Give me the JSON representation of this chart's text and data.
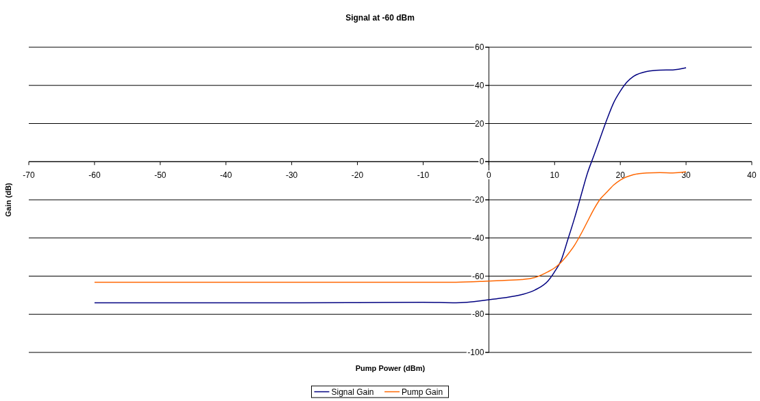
{
  "chart_data": {
    "type": "line",
    "title": "Signal at -60 dBm",
    "xlabel": "Pump Power (dBm)",
    "ylabel": "Gain (dB)",
    "xlim": [
      -70,
      40
    ],
    "xticks": [
      -70,
      -60,
      -50,
      -40,
      -30,
      -20,
      -10,
      0,
      10,
      20,
      30,
      40
    ],
    "ylim": [
      -100,
      60
    ],
    "yticks": [
      -100,
      -80,
      -60,
      -40,
      -20,
      0,
      20,
      40,
      60
    ],
    "grid": "y",
    "legend": "bottom",
    "marker": "none",
    "line_style": "solid",
    "series": [
      {
        "name": "Signal Gain",
        "color": "#000080",
        "x": [
          -60,
          -50,
          -40,
          -30,
          -20,
          -10,
          -5,
          0,
          2,
          5,
          7,
          9,
          10,
          11,
          12,
          13,
          14,
          15,
          16,
          17,
          18,
          19,
          20,
          21,
          22,
          24,
          26,
          28,
          30
        ],
        "values": [
          -74,
          -74,
          -74,
          -74,
          -73.9,
          -73.7,
          -74,
          -72.4,
          -71.5,
          -69.7,
          -67.3,
          -62.5,
          -57.7,
          -51.7,
          -41,
          -30,
          -18,
          -6,
          3.4,
          13,
          22.5,
          31,
          37,
          41.7,
          44.7,
          47.3,
          48,
          48.1,
          49.2
        ]
      },
      {
        "name": "Pump Gain",
        "color": "#ff6600",
        "x": [
          -60,
          -50,
          -40,
          -30,
          -20,
          -10,
          -5,
          0,
          2,
          5,
          7,
          9,
          10,
          11,
          12,
          13,
          14,
          15,
          16,
          17,
          18,
          19,
          20,
          22,
          24,
          26,
          28,
          30
        ],
        "values": [
          -63.2,
          -63.2,
          -63.2,
          -63.2,
          -63.2,
          -63.2,
          -63.2,
          -62.6,
          -62.3,
          -61.8,
          -60.7,
          -57.7,
          -55.7,
          -52.7,
          -48.7,
          -44,
          -38,
          -31.4,
          -24.8,
          -19.4,
          -15.8,
          -12.2,
          -9.6,
          -6.8,
          -5.9,
          -5.7,
          -5.9,
          -5.3
        ]
      }
    ]
  }
}
